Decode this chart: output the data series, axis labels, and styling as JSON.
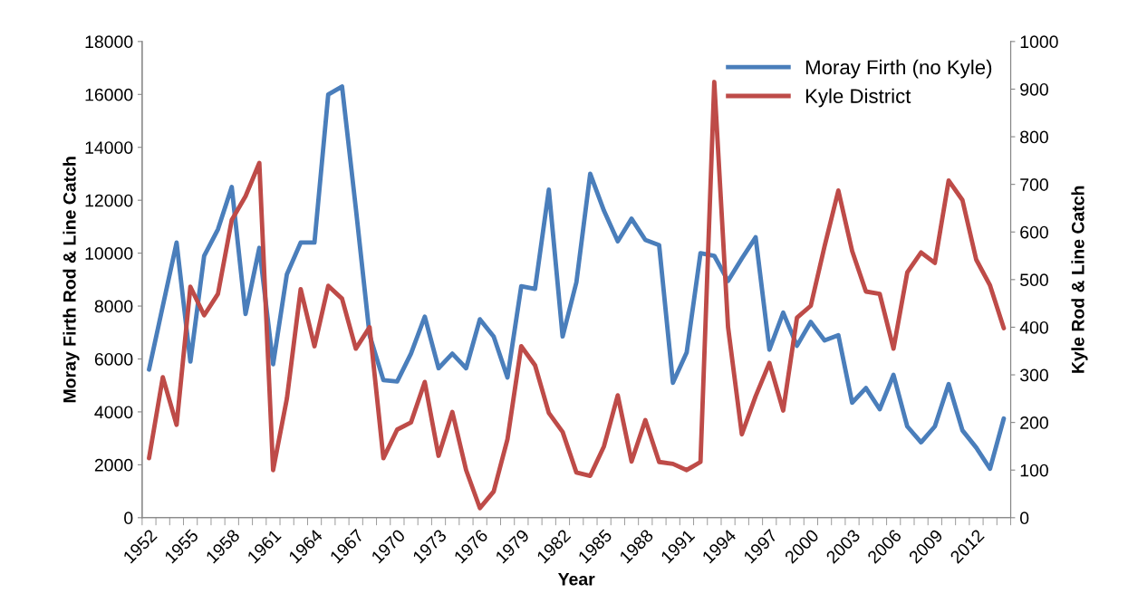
{
  "chart_data": {
    "type": "line",
    "xlabel": "Year",
    "ylabel": "Moray Firth Rod & Line Catch",
    "y2label": "Kyle Rod & Line Catch",
    "categories": [
      "1952",
      null,
      null,
      "1955",
      null,
      null,
      "1958",
      null,
      null,
      "1961",
      null,
      null,
      "1964",
      null,
      null,
      "1967",
      null,
      null,
      "1970",
      null,
      null,
      "1973",
      null,
      null,
      "1976",
      null,
      null,
      "1979",
      null,
      null,
      "1982",
      null,
      null,
      "1985",
      null,
      null,
      "1988",
      null,
      null,
      "1991",
      null,
      null,
      "1994",
      null,
      null,
      "1997",
      null,
      null,
      "2000",
      null,
      null,
      "2003",
      null,
      null,
      "2006",
      null,
      null,
      "2009",
      null,
      null,
      "2012",
      null,
      null
    ],
    "series": [
      {
        "name": "Moray Firth (no Kyle)",
        "color": "#4a7ebb",
        "values": [
          5600,
          8000,
          10400,
          5900,
          9900,
          10900,
          12500,
          7700,
          10200,
          5800,
          9200,
          10400,
          10400,
          16000,
          16300,
          11700,
          6900,
          5200,
          5150,
          6200,
          7600,
          5650,
          6200,
          5650,
          7500,
          6850,
          5300,
          8750,
          8650,
          12400,
          6850,
          8900,
          13000,
          11600,
          10450,
          11300,
          10500,
          10300,
          5100,
          6250,
          10000,
          9900,
          8950,
          9800,
          10600,
          6350,
          7750,
          6500,
          7400,
          6700,
          6900,
          4350,
          4900,
          4100,
          5400,
          3450,
          2850,
          3450,
          5050,
          3300,
          2650,
          1850,
          3750
        ]
      },
      {
        "name": "Kyle District",
        "color": "#be4b48",
        "axis": "y2",
        "values": [
          125,
          295,
          195,
          485,
          425,
          470,
          625,
          675,
          745,
          100,
          250,
          480,
          360,
          487,
          460,
          355,
          400,
          125,
          185,
          200,
          285,
          130,
          222,
          100,
          20,
          55,
          165,
          360,
          320,
          220,
          180,
          95,
          88,
          150,
          257,
          118,
          205,
          117,
          113,
          100,
          117,
          915,
          400,
          175,
          255,
          325,
          225,
          420,
          445,
          570,
          687,
          560,
          475,
          470,
          355,
          515,
          557,
          535,
          708,
          667,
          542,
          488,
          398
        ]
      }
    ],
    "ylim": [
      0,
      18000
    ],
    "yticks": [
      0,
      2000,
      4000,
      6000,
      8000,
      10000,
      12000,
      14000,
      16000,
      18000
    ],
    "y2lim": [
      0,
      1000
    ],
    "y2ticks": [
      0,
      100,
      200,
      300,
      400,
      500,
      600,
      700,
      800,
      900,
      1000
    ],
    "grid": false,
    "legend": "top right",
    "marker": "none",
    "line_style": "solid"
  }
}
